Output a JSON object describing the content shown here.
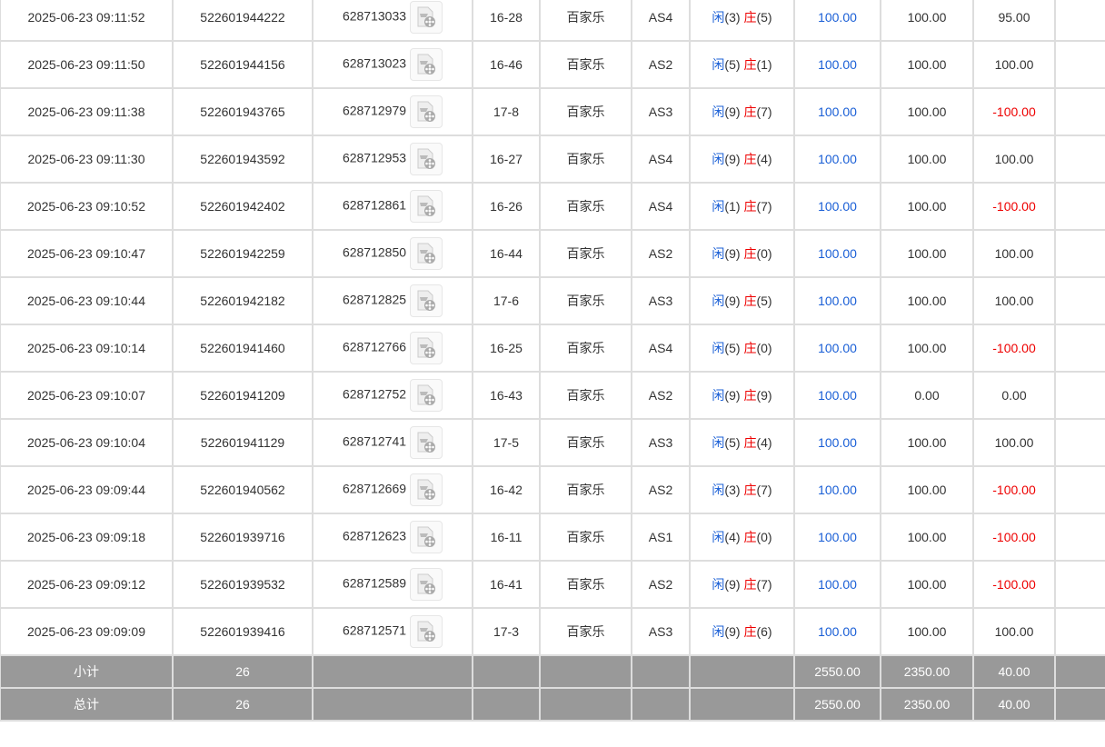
{
  "colors": {
    "player": "#1a5fd6",
    "banker": "#e00000",
    "summary_bg": "#999999"
  },
  "labels": {
    "player": "闲",
    "banker": "庄"
  },
  "rows": [
    {
      "time": "2025-06-23 09:11:52",
      "bet_id": "522601944222",
      "round_id": "628713033",
      "shoe": "16-28",
      "game": "百家乐",
      "table": "AS4",
      "p": "3",
      "b": "5",
      "bet": "100.00",
      "valid": "100.00",
      "win": "95.00"
    },
    {
      "time": "2025-06-23 09:11:50",
      "bet_id": "522601944156",
      "round_id": "628713023",
      "shoe": "16-46",
      "game": "百家乐",
      "table": "AS2",
      "p": "5",
      "b": "1",
      "bet": "100.00",
      "valid": "100.00",
      "win": "100.00"
    },
    {
      "time": "2025-06-23 09:11:38",
      "bet_id": "522601943765",
      "round_id": "628712979",
      "shoe": "17-8",
      "game": "百家乐",
      "table": "AS3",
      "p": "9",
      "b": "7",
      "bet": "100.00",
      "valid": "100.00",
      "win": "-100.00"
    },
    {
      "time": "2025-06-23 09:11:30",
      "bet_id": "522601943592",
      "round_id": "628712953",
      "shoe": "16-27",
      "game": "百家乐",
      "table": "AS4",
      "p": "9",
      "b": "4",
      "bet": "100.00",
      "valid": "100.00",
      "win": "100.00"
    },
    {
      "time": "2025-06-23 09:10:52",
      "bet_id": "522601942402",
      "round_id": "628712861",
      "shoe": "16-26",
      "game": "百家乐",
      "table": "AS4",
      "p": "1",
      "b": "7",
      "bet": "100.00",
      "valid": "100.00",
      "win": "-100.00"
    },
    {
      "time": "2025-06-23 09:10:47",
      "bet_id": "522601942259",
      "round_id": "628712850",
      "shoe": "16-44",
      "game": "百家乐",
      "table": "AS2",
      "p": "9",
      "b": "0",
      "bet": "100.00",
      "valid": "100.00",
      "win": "100.00"
    },
    {
      "time": "2025-06-23 09:10:44",
      "bet_id": "522601942182",
      "round_id": "628712825",
      "shoe": "17-6",
      "game": "百家乐",
      "table": "AS3",
      "p": "9",
      "b": "5",
      "bet": "100.00",
      "valid": "100.00",
      "win": "100.00"
    },
    {
      "time": "2025-06-23 09:10:14",
      "bet_id": "522601941460",
      "round_id": "628712766",
      "shoe": "16-25",
      "game": "百家乐",
      "table": "AS4",
      "p": "5",
      "b": "0",
      "bet": "100.00",
      "valid": "100.00",
      "win": "-100.00"
    },
    {
      "time": "2025-06-23 09:10:07",
      "bet_id": "522601941209",
      "round_id": "628712752",
      "shoe": "16-43",
      "game": "百家乐",
      "table": "AS2",
      "p": "9",
      "b": "9",
      "bet": "100.00",
      "valid": "0.00",
      "win": "0.00"
    },
    {
      "time": "2025-06-23 09:10:04",
      "bet_id": "522601941129",
      "round_id": "628712741",
      "shoe": "17-5",
      "game": "百家乐",
      "table": "AS3",
      "p": "5",
      "b": "4",
      "bet": "100.00",
      "valid": "100.00",
      "win": "100.00"
    },
    {
      "time": "2025-06-23 09:09:44",
      "bet_id": "522601940562",
      "round_id": "628712669",
      "shoe": "16-42",
      "game": "百家乐",
      "table": "AS2",
      "p": "3",
      "b": "7",
      "bet": "100.00",
      "valid": "100.00",
      "win": "-100.00"
    },
    {
      "time": "2025-06-23 09:09:18",
      "bet_id": "522601939716",
      "round_id": "628712623",
      "shoe": "16-11",
      "game": "百家乐",
      "table": "AS1",
      "p": "4",
      "b": "0",
      "bet": "100.00",
      "valid": "100.00",
      "win": "-100.00"
    },
    {
      "time": "2025-06-23 09:09:12",
      "bet_id": "522601939532",
      "round_id": "628712589",
      "shoe": "16-41",
      "game": "百家乐",
      "table": "AS2",
      "p": "9",
      "b": "7",
      "bet": "100.00",
      "valid": "100.00",
      "win": "-100.00"
    },
    {
      "time": "2025-06-23 09:09:09",
      "bet_id": "522601939416",
      "round_id": "628712571",
      "shoe": "17-3",
      "game": "百家乐",
      "table": "AS3",
      "p": "9",
      "b": "6",
      "bet": "100.00",
      "valid": "100.00",
      "win": "100.00"
    }
  ],
  "subtotal": {
    "label": "小计",
    "count": "26",
    "bet": "2550.00",
    "valid": "2350.00",
    "win": "40.00"
  },
  "total": {
    "label": "总计",
    "count": "26",
    "bet": "2550.00",
    "valid": "2350.00",
    "win": "40.00"
  }
}
